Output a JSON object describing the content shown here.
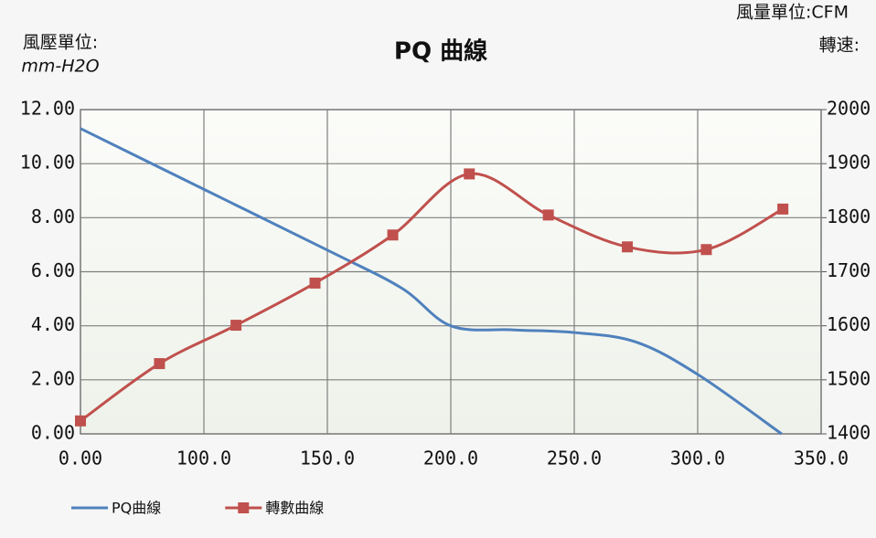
{
  "chart_data": {
    "type": "line",
    "title": "PQ 曲線",
    "flow_unit": "風量單位:CFM",
    "pressure_unit_label": "風壓單位:",
    "pressure_unit": "mm-H2O",
    "speed_label": "轉速:",
    "xlim": [
      0,
      6
    ],
    "xticks": [
      {
        "value": 0,
        "label": "0.00"
      },
      {
        "value": 1,
        "label": "100.0"
      },
      {
        "value": 2,
        "label": "150.0"
      },
      {
        "value": 3,
        "label": "200.0"
      },
      {
        "value": 4,
        "label": "250.0"
      },
      {
        "value": 5,
        "label": "300.0"
      },
      {
        "value": 6,
        "label": "350.0"
      }
    ],
    "ylim": [
      0,
      12
    ],
    "yticks": [
      {
        "value": 0,
        "label": "0.00"
      },
      {
        "value": 2,
        "label": "2.00"
      },
      {
        "value": 4,
        "label": "4.00"
      },
      {
        "value": 6,
        "label": "6.00"
      },
      {
        "value": 8,
        "label": "8.00"
      },
      {
        "value": 10,
        "label": "10.00"
      },
      {
        "value": 12,
        "label": "12.00"
      }
    ],
    "y2lim": [
      1400,
      2000
    ],
    "y2ticks": [
      1400,
      1500,
      1600,
      1700,
      1800,
      1900,
      2000
    ],
    "grid": true,
    "legend": "bottom-left",
    "series": [
      {
        "name": "PQ曲線",
        "color": "#4f81bd",
        "marker": false,
        "x": [
          0,
          1,
          2,
          2.6,
          3,
          3.5,
          4,
          4.5,
          5,
          5.68
        ],
        "values": [
          11.3,
          9.05,
          6.8,
          5.4,
          4.0,
          3.85,
          3.75,
          3.4,
          2.2,
          0
        ]
      },
      {
        "name": "轉數曲線",
        "color": "#c0504d",
        "marker": true,
        "axis": "y2",
        "x": [
          0,
          0.64,
          1.26,
          1.9,
          2.53,
          3.15,
          3.79,
          4.43,
          5.07,
          5.69
        ],
        "values": [
          1424,
          1530,
          1601,
          1679,
          1768,
          1881,
          1805,
          1746,
          1741,
          1816
        ]
      }
    ]
  }
}
